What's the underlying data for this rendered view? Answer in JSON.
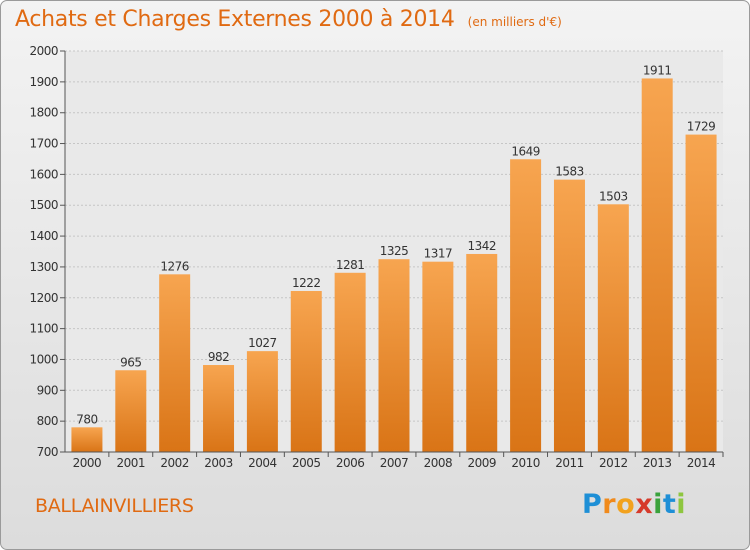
{
  "header": {
    "title": "Achats et Charges Externes 2000 à 2014",
    "unit": "(en milliers d'€)"
  },
  "footer": {
    "commune": "BALLAINVILLIERS",
    "logo": {
      "letters": [
        "P",
        "r",
        "o",
        "x",
        "i",
        "t",
        "i"
      ],
      "colors": [
        "#1e8fd6",
        "#f08a1c",
        "#f2a21e",
        "#d63a2b",
        "#3aa23c",
        "#1e8fd6",
        "#8ec63f"
      ]
    }
  },
  "chart_data": {
    "type": "bar",
    "title": "Achats et Charges Externes 2000 à 2014",
    "subtitle": "(en milliers d'€)",
    "categories": [
      "2000",
      "2001",
      "2002",
      "2003",
      "2004",
      "2005",
      "2006",
      "2007",
      "2008",
      "2009",
      "2010",
      "2011",
      "2012",
      "2013",
      "2014"
    ],
    "values": [
      780,
      965,
      1276,
      982,
      1027,
      1222,
      1281,
      1325,
      1317,
      1342,
      1649,
      1583,
      1503,
      1911,
      1729
    ],
    "ylim": [
      700,
      2000
    ],
    "yticks": [
      700,
      800,
      900,
      1000,
      1100,
      1200,
      1300,
      1400,
      1500,
      1600,
      1700,
      1800,
      1900,
      2000
    ],
    "grid": true,
    "bar_color_top": "#f7a550",
    "bar_color_bottom": "#d97416"
  }
}
